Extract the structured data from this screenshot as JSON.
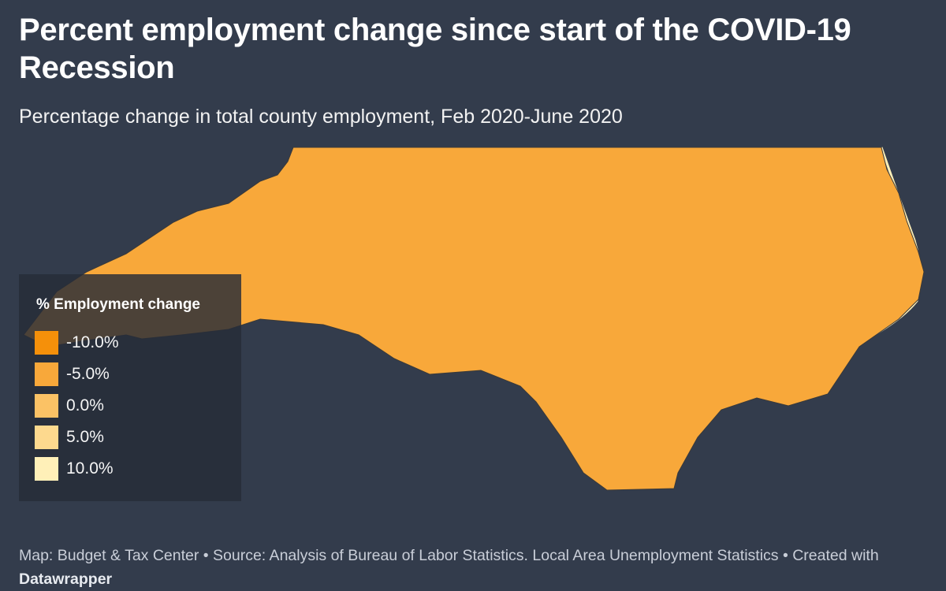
{
  "title": "Percent employment change since start of the COVID-19 Recession",
  "subtitle": "Percentage change in total county employment, Feb 2020-June 2020",
  "legend": {
    "title": "% Employment change",
    "items": [
      {
        "label": "-10.0%",
        "color": "#f5900a"
      },
      {
        "label": "-5.0%",
        "color": "#f8a83a"
      },
      {
        "label": "0.0%",
        "color": "#fbc265"
      },
      {
        "label": "5.0%",
        "color": "#fdd98e"
      },
      {
        "label": "10.0%",
        "color": "#fff0b8"
      }
    ]
  },
  "footer": {
    "prefix": "Map: Budget & Tax Center • Source: Analysis of Bureau of Labor Statistics. Local Area Unemployment Statistics • Created with ",
    "tool": "Datawrapper"
  },
  "map": {
    "state_border_color": "#3a3a3a",
    "county_fill_colors": [
      "#f5900a",
      "#f8a83a",
      "#fbc265",
      "#fdd98e",
      "#fff0b8"
    ]
  }
}
